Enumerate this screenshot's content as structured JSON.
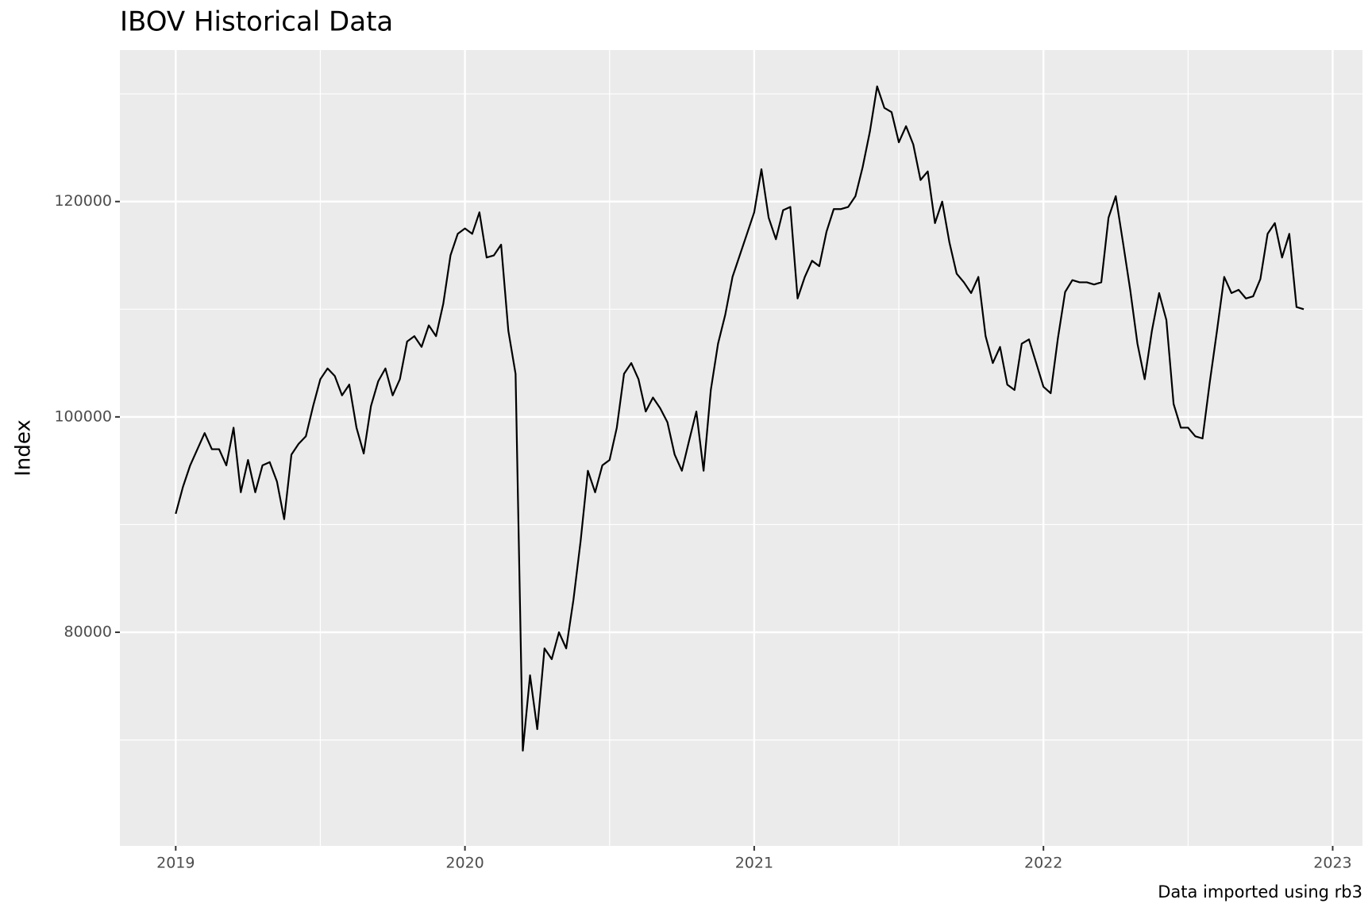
{
  "chart_data": {
    "type": "line",
    "title": "IBOV Historical Data",
    "caption": "Data imported using rb3",
    "y_label": "Index",
    "x": [
      2019,
      2019.025,
      2019.05,
      2019.075,
      2019.1,
      2019.125,
      2019.15,
      2019.175,
      2019.2,
      2019.225,
      2019.25,
      2019.275,
      2019.3,
      2019.325,
      2019.35,
      2019.375,
      2019.4,
      2019.425,
      2019.45,
      2019.475,
      2019.5,
      2019.525,
      2019.55,
      2019.575,
      2019.6,
      2019.625,
      2019.65,
      2019.675,
      2019.7,
      2019.725,
      2019.75,
      2019.775,
      2019.8,
      2019.825,
      2019.85,
      2019.875,
      2019.9,
      2019.925,
      2019.95,
      2019.975,
      2020,
      2020.025,
      2020.05,
      2020.075,
      2020.1,
      2020.125,
      2020.15,
      2020.175,
      2020.2,
      2020.225,
      2020.25,
      2020.275,
      2020.3,
      2020.325,
      2020.35,
      2020.375,
      2020.4,
      2020.425,
      2020.45,
      2020.475,
      2020.5,
      2020.525,
      2020.55,
      2020.575,
      2020.6,
      2020.625,
      2020.65,
      2020.675,
      2020.7,
      2020.725,
      2020.75,
      2020.775,
      2020.8,
      2020.825,
      2020.85,
      2020.875,
      2020.9,
      2020.925,
      2020.95,
      2020.975,
      2021,
      2021.025,
      2021.05,
      2021.075,
      2021.1,
      2021.125,
      2021.15,
      2021.175,
      2021.2,
      2021.225,
      2021.25,
      2021.275,
      2021.3,
      2021.325,
      2021.35,
      2021.375,
      2021.4,
      2021.425,
      2021.45,
      2021.475,
      2021.5,
      2021.525,
      2021.55,
      2021.575,
      2021.6,
      2021.625,
      2021.65,
      2021.675,
      2021.7,
      2021.725,
      2021.75,
      2021.775,
      2021.8,
      2021.825,
      2021.85,
      2021.875,
      2021.9,
      2021.925,
      2021.95,
      2021.975,
      2022,
      2022.025,
      2022.05,
      2022.075,
      2022.1,
      2022.125,
      2022.15,
      2022.175,
      2022.2,
      2022.225,
      2022.25,
      2022.275,
      2022.3,
      2022.325,
      2022.35,
      2022.375,
      2022.4,
      2022.425,
      2022.45,
      2022.475,
      2022.5,
      2022.525,
      2022.55,
      2022.575,
      2022.6,
      2022.625,
      2022.65,
      2022.675,
      2022.7,
      2022.725,
      2022.75,
      2022.775,
      2022.8,
      2022.825,
      2022.85,
      2022.875,
      2022.9
    ],
    "values": [
      91000,
      93500,
      95500,
      97000,
      98500,
      97000,
      97000,
      95500,
      99000,
      93000,
      96000,
      93000,
      95500,
      95800,
      94000,
      90500,
      96500,
      97500,
      98200,
      101000,
      103500,
      104500,
      103800,
      102000,
      103000,
      99000,
      96600,
      101000,
      103300,
      104500,
      102000,
      103500,
      107000,
      107500,
      106500,
      108500,
      107500,
      110500,
      115000,
      117000,
      117500,
      117000,
      119000,
      114800,
      115000,
      116000,
      108000,
      104000,
      69000,
      76000,
      71000,
      78500,
      77500,
      80000,
      78500,
      83000,
      88500,
      95000,
      93000,
      95500,
      96000,
      99000,
      104000,
      105000,
      103500,
      100500,
      101800,
      100800,
      99500,
      96500,
      95000,
      97800,
      100500,
      95000,
      102500,
      106800,
      109500,
      113000,
      115000,
      117000,
      119000,
      123000,
      118500,
      116500,
      119200,
      119500,
      111000,
      113000,
      114500,
      114000,
      117200,
      119300,
      119300,
      119500,
      120500,
      123200,
      126500,
      130700,
      128700,
      128300,
      125500,
      127000,
      125300,
      122000,
      122800,
      118000,
      120000,
      116200,
      113300,
      112500,
      111500,
      113000,
      107500,
      105000,
      106500,
      103000,
      102500,
      106800,
      107200,
      105000,
      102800,
      102200,
      107300,
      111600,
      112700,
      112500,
      112500,
      112300,
      112500,
      118500,
      120500,
      116200,
      111800,
      106800,
      103500,
      108000,
      111500,
      109000,
      101200,
      99000,
      99000,
      98200,
      98000,
      103200,
      108000,
      113000,
      111500,
      111800,
      111000,
      111200,
      112800,
      117000,
      118000,
      114800,
      117000,
      110200,
      110000
    ],
    "color": "#000000",
    "xlim": [
      2018.807,
      2023.103
    ],
    "ylim": [
      60160,
      134070
    ],
    "xticks": [
      2019,
      2020,
      2021,
      2022,
      2023
    ],
    "yticks": [
      80000,
      100000,
      120000
    ],
    "xminor": [
      2019.5,
      2020.5,
      2021.5,
      2022.5
    ],
    "yminor": [
      70000,
      90000,
      110000,
      130000
    ],
    "grid": true
  }
}
